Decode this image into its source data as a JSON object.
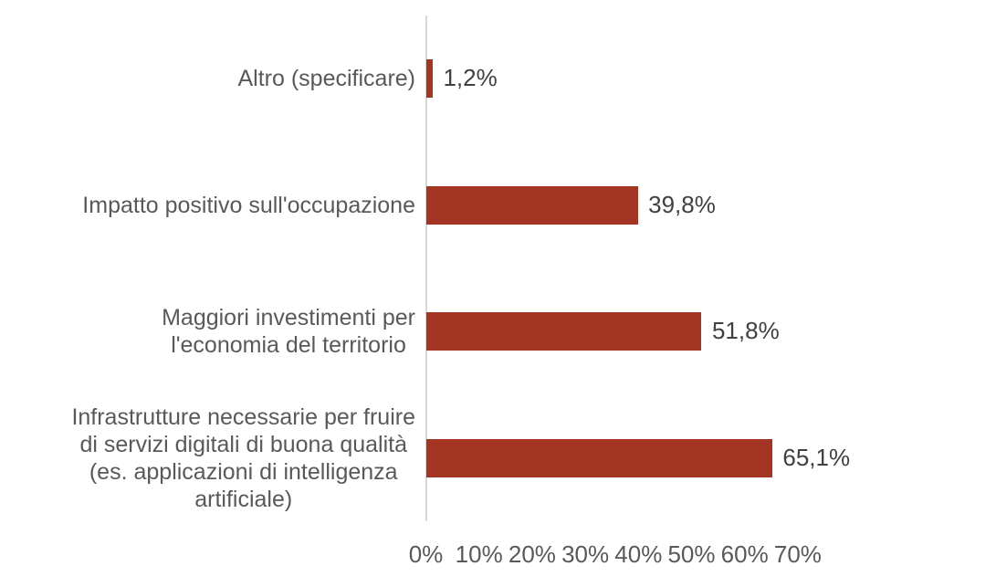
{
  "chart_data": {
    "type": "bar",
    "orientation": "horizontal",
    "title": "",
    "categories": [
      "Altro (specificare)",
      "Impatto positivo sull'occupazione",
      "Maggiori investimenti per l'economia del territorio",
      "Infrastrutture necessarie per fruire di servizi digitali di buona qualità (es. applicazioni di intelligenza artificiale)"
    ],
    "categories_multiline": [
      "Altro (specificare)",
      "Impatto positivo sull'occupazione",
      "Maggiori investimenti per\nl'economia del territorio",
      "Infrastrutture necessarie per fruire\ndi servizi digitali di buona qualità\n(es. applicazioni di intelligenza\nartificiale)"
    ],
    "values": [
      1.2,
      39.8,
      51.8,
      65.1
    ],
    "value_labels": [
      "1,2%",
      "39,8%",
      "51,8%",
      "65,1%"
    ],
    "x_ticks": [
      "0%",
      "10%",
      "20%",
      "30%",
      "40%",
      "50%",
      "60%",
      "70%"
    ],
    "xlim": [
      0,
      70
    ],
    "grid": false,
    "legend": false,
    "colors": {
      "bar": "#A43522",
      "category_label": "#595959",
      "value_label": "#404040",
      "tick_label": "#595959",
      "axis_line": "#D9D9D9",
      "background": "#FFFFFF"
    }
  }
}
